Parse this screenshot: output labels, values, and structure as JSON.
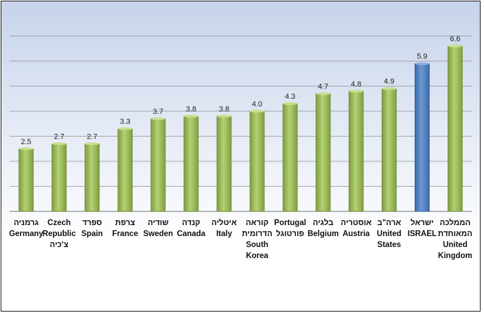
{
  "chart_data": {
    "type": "bar",
    "title": "",
    "xlabel": "",
    "ylabel": "",
    "ylim": [
      0,
      7
    ],
    "grid": true,
    "legend": "none",
    "colors": {
      "default_bar": "#9bbb59",
      "highlight_bar": "#4f81bd",
      "background_top": "#c6d3ea",
      "background_bottom": "#ffffff",
      "gridline": "#8c8c8c"
    },
    "categories": [
      [
        "גרמניה",
        "Germany"
      ],
      [
        "Czech",
        "Republic",
        "צ'כיה"
      ],
      [
        "ספרד",
        "Spain"
      ],
      [
        "צרפת",
        "France"
      ],
      [
        "שודיה",
        "Sweden"
      ],
      [
        "קנדה",
        "Canada"
      ],
      [
        "איטליה",
        "Italy"
      ],
      [
        "קוראה",
        "הדרומית",
        "South",
        "Korea"
      ],
      [
        "Portugal",
        "פורטוגל"
      ],
      [
        "בלגיה",
        "Belgium"
      ],
      [
        "אוסטריה",
        "Austria"
      ],
      [
        "ארה\"ב",
        "United",
        "States"
      ],
      [
        "ישראל",
        "ISRAEL"
      ],
      [
        "הממלכה",
        "המאוחדת",
        "United",
        "Kingdom"
      ]
    ],
    "values": [
      2.5,
      2.7,
      2.7,
      3.3,
      3.7,
      3.8,
      3.8,
      4.0,
      4.3,
      4.7,
      4.8,
      4.9,
      5.9,
      6.6
    ],
    "value_labels": [
      "2.5",
      "2.7",
      "2.7",
      "3.3",
      "3.7",
      "3.8",
      "3.8",
      "4.0",
      "4.3",
      "4.7",
      "4.8",
      "4.9",
      "5.9",
      "6.6"
    ],
    "highlight_index": 12
  }
}
